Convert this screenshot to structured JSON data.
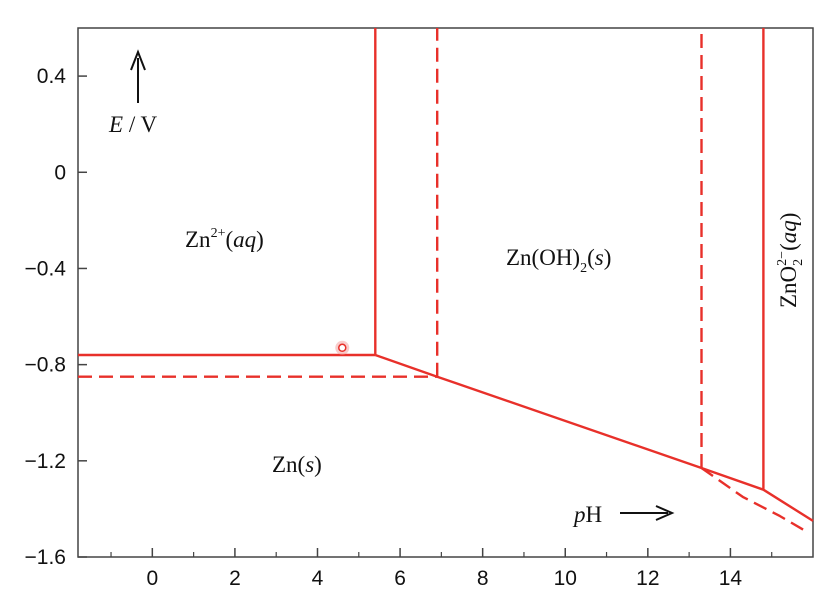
{
  "chart_data": {
    "type": "line",
    "chart_kind": "Pourbaix diagram",
    "xlabel": "pH",
    "ylabel": "E / V",
    "xlim": [
      -1.8,
      16
    ],
    "ylim": [
      -1.6,
      0.6
    ],
    "xticks": [
      0,
      2,
      4,
      6,
      8,
      10,
      12,
      14
    ],
    "yticks": [
      0.4,
      0,
      -0.4,
      -0.8,
      -1.2,
      -1.6
    ],
    "ytick_labels": [
      "0.4",
      "0",
      "−0.4",
      "−0.8",
      "−1.2",
      "−1.6"
    ],
    "grid": false,
    "line_color": "#e8302a",
    "series": [
      {
        "style": "solid",
        "x": [
          -1.8,
          5.4
        ],
        "y": [
          -0.76,
          -0.76
        ]
      },
      {
        "style": "solid",
        "x": [
          5.4,
          5.4
        ],
        "y": [
          -0.76,
          0.6
        ]
      },
      {
        "style": "solid",
        "x": [
          5.4,
          6.9,
          13.3,
          14.8,
          16
        ],
        "y": [
          -0.76,
          -0.85,
          -1.23,
          -1.32,
          -1.45
        ]
      },
      {
        "style": "solid",
        "x": [
          14.8,
          14.8
        ],
        "y": [
          -1.32,
          0.6
        ]
      },
      {
        "style": "dashed",
        "x": [
          -1.8,
          6.9
        ],
        "y": [
          -0.85,
          -0.85
        ]
      },
      {
        "style": "dashed",
        "x": [
          6.9,
          6.9
        ],
        "y": [
          -0.85,
          0.6
        ]
      },
      {
        "style": "dashed",
        "x": [
          13.3,
          13.3
        ],
        "y": [
          -1.23,
          0.6
        ]
      },
      {
        "style": "dashed",
        "x": [
          13.3,
          14.3,
          15.2,
          15.9
        ],
        "y": [
          -1.23,
          -1.35,
          -1.43,
          -1.5
        ]
      }
    ],
    "marker": {
      "x": 4.6,
      "y": -0.73
    },
    "regions": [
      {
        "id": "zn2",
        "label": "Zn²⁺(aq)",
        "x": 1.8,
        "y": -0.29,
        "rotate": false
      },
      {
        "id": "znoh2",
        "label": "Zn(OH)₂(s)",
        "x": 10.3,
        "y": -0.36,
        "rotate": false
      },
      {
        "id": "zno2",
        "label": "ZnO₂²⁻(aq)",
        "x": 15.5,
        "y": -0.3,
        "rotate": true
      },
      {
        "id": "zns",
        "label": "Zn(s)",
        "x": 3.4,
        "y": -1.25,
        "rotate": false
      }
    ],
    "annotations": {
      "e_axis": "E / V",
      "ph_axis": "pH"
    }
  }
}
